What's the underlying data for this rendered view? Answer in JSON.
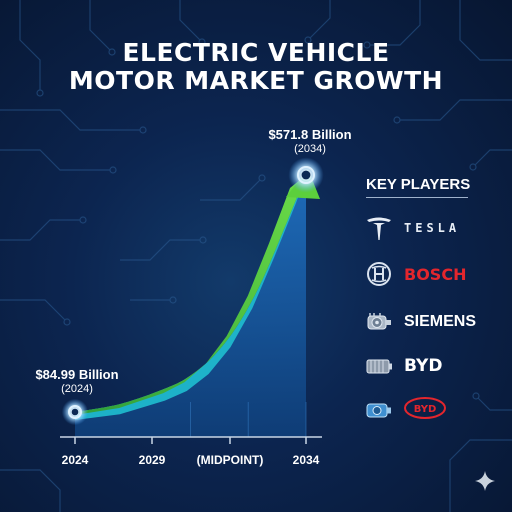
{
  "title_line1": "ELECTRIC VEHICLE",
  "title_line2": "MOTOR MARKET GROWTH",
  "chart_data": {
    "type": "area",
    "title": "ELECTRIC VEHICLE MOTOR MARKET GROWTH",
    "x_tick_labels": [
      "2024",
      "2029",
      "(MIDPOINT)",
      "2034"
    ],
    "x": [
      2024,
      2026,
      2028,
      2029,
      2030,
      2031,
      2032,
      2033,
      2034
    ],
    "y": [
      84.99,
      102,
      135,
      160,
      200,
      260,
      345,
      455,
      571.8
    ],
    "y_unit": "Billion USD",
    "ylim": [
      0,
      571.8
    ],
    "start_point": {
      "x": 2024,
      "value": 84.99,
      "label": "$84.99 Billion",
      "sublabel": "(2024)"
    },
    "end_point": {
      "x": 2034,
      "value": 571.8,
      "label": "$571.8 Billion",
      "sublabel": "(2034)"
    },
    "colors": {
      "arrow": "#5ccf3c",
      "band": "#1fb8cc",
      "area": "#1a5fa6",
      "point": "#dff2ff"
    },
    "grid": false
  },
  "key_players": {
    "title": "KEY PLAYERS",
    "items": [
      {
        "name": "TESLA",
        "icon": "tesla-logo"
      },
      {
        "name": "BOSCH",
        "icon": "bosch-logo"
      },
      {
        "name": "SIEMENS",
        "icon": "motor-icon"
      },
      {
        "name": "BYD",
        "icon": "battery-icon"
      },
      {
        "name": "BYD",
        "icon": "byd-oval-logo",
        "logo_only": true
      }
    ]
  },
  "icons": {
    "sparkle": "sparkle-icon"
  }
}
